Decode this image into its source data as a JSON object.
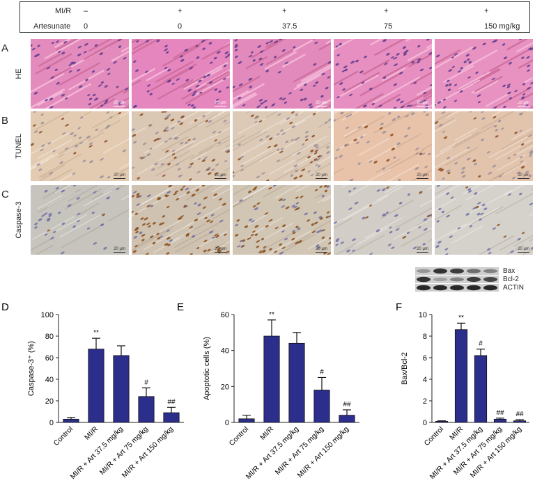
{
  "treatment_table": {
    "rows": [
      {
        "label": "MI/R",
        "values": [
          "–",
          "+",
          "+",
          "+",
          "+"
        ]
      },
      {
        "label": "Artesunate",
        "values": [
          "0",
          "0",
          "37.5",
          "75",
          "150 mg/kg"
        ]
      }
    ]
  },
  "micrographs": {
    "rows": [
      {
        "panel": "A",
        "label": "HE",
        "style": "he"
      },
      {
        "panel": "B",
        "label": "TUNEL",
        "style": "tunel"
      },
      {
        "panel": "C",
        "label": "Caspase-3",
        "style": "casp"
      }
    ],
    "scale_bar": "20 μm",
    "tiles": {
      "he": [
        {
          "base": "#e48bbd"
        },
        {
          "base": "#e686be"
        },
        {
          "base": "#e38abd"
        },
        {
          "base": "#e68fc0"
        },
        {
          "base": "#e892c2"
        }
      ],
      "tunel": [
        {
          "base": "#e3cbb2",
          "dots": 0.15
        },
        {
          "base": "#dbc8b4",
          "dots": 0.55
        },
        {
          "base": "#dccab7",
          "dots": 0.45
        },
        {
          "base": "#e8c3aa",
          "dots": 0.2
        },
        {
          "base": "#e2c4ad",
          "dots": 0.25
        }
      ],
      "casp": [
        {
          "base": "#c6c4bd",
          "dots": 0.05
        },
        {
          "base": "#cfc2b1",
          "dots": 0.75
        },
        {
          "base": "#d1c5b4",
          "dots": 0.65
        },
        {
          "base": "#d2cdc6",
          "dots": 0.12
        },
        {
          "base": "#d5d1cb",
          "dots": 0.1
        }
      ]
    }
  },
  "western_blot": {
    "bands": [
      {
        "label": "Bax",
        "intensities": [
          0.35,
          0.85,
          0.8,
          0.55,
          0.45
        ]
      },
      {
        "label": "Bcl-2",
        "intensities": [
          0.85,
          0.3,
          0.45,
          0.8,
          0.75
        ]
      },
      {
        "label": "ACTIN",
        "intensities": [
          0.9,
          0.9,
          0.9,
          0.9,
          0.9
        ]
      }
    ]
  },
  "bar_color": "#2c2e8c",
  "chart_data": [
    {
      "panel": "D",
      "type": "bar",
      "categories": [
        "Control",
        "MI/R",
        "MI/R + Art 37.5 mg/kg",
        "MI/R + Art 75 mg/kg",
        "MI/R + Art 150 mg/kg"
      ],
      "values": [
        3,
        68,
        62,
        24,
        9
      ],
      "errors": [
        1.5,
        10,
        9,
        8,
        5
      ],
      "annotations": [
        "",
        "**",
        "",
        "#",
        "##"
      ],
      "ylabel": "Caspase-3⁺ (%)",
      "ylim": [
        0,
        100
      ],
      "yticks": [
        0,
        20,
        40,
        60,
        80,
        100
      ]
    },
    {
      "panel": "E",
      "type": "bar",
      "categories": [
        "Control",
        "MI/R",
        "MI/R + Art 37.5 mg/kg",
        "MI/R + Art 75 mg/kg",
        "MI/R + Art 150 mg/kg"
      ],
      "values": [
        2,
        48,
        44,
        18,
        4
      ],
      "errors": [
        2,
        9,
        6,
        7,
        3
      ],
      "annotations": [
        "",
        "**",
        "",
        "#",
        "##"
      ],
      "ylabel": "Apoptotic cells (%)",
      "ylim": [
        0,
        60
      ],
      "yticks": [
        0,
        20,
        40,
        60
      ]
    },
    {
      "panel": "F",
      "type": "bar",
      "categories": [
        "Control",
        "MI/R",
        "MI/R + Art 37.5 mg/kg",
        "MI/R + Art 75 mg/kg",
        "MI/R + Art 150 mg/kg"
      ],
      "values": [
        0.1,
        8.6,
        6.2,
        0.3,
        0.15
      ],
      "errors": [
        0.05,
        0.6,
        0.6,
        0.1,
        0.1
      ],
      "annotations": [
        "",
        "**",
        "#",
        "##",
        "##"
      ],
      "ylabel": "Bax/Bcl-2",
      "ylim": [
        0,
        10
      ],
      "yticks": [
        0,
        2,
        4,
        6,
        8,
        10
      ]
    }
  ]
}
